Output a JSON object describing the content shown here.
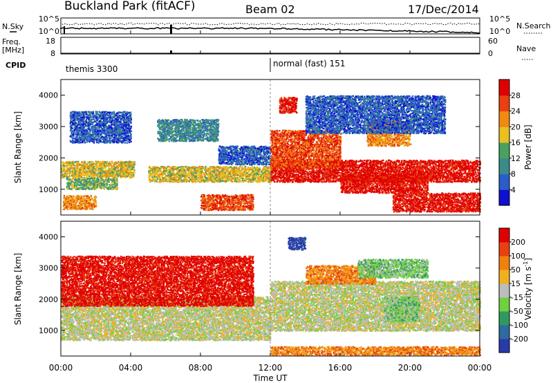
{
  "header": {
    "site": "Buckland Park (fitACF)",
    "beam": "Beam 02",
    "date": "17/Dec/2014"
  },
  "aux_panels": {
    "nsky_label": "N.Sky",
    "nsearch_label": "N.Search",
    "freq_label": "Freq.",
    "freq_unit": "[MHz]",
    "nave_label": "Nave",
    "cpid_label": "CPID",
    "noise_ticks_left": [
      "10^5",
      "10^0"
    ],
    "noise_ticks_right": [
      "10^5",
      "10^0"
    ],
    "freq_ticks": [
      "18",
      "8"
    ],
    "nave_ticks": [
      "60",
      "0"
    ],
    "cpid_segments": [
      {
        "text": "themis 3300",
        "start_h": 0
      },
      {
        "text": "normal (fast) 151",
        "start_h": 12
      }
    ]
  },
  "time_axis": {
    "label": "Time UT",
    "ticks": [
      "00:00",
      "04:00",
      "08:00",
      "12:00",
      "16:00",
      "20:00",
      "00:00"
    ]
  },
  "range_axis": {
    "label": "Slant Range [km]",
    "ticks": [
      1000,
      2000,
      3000,
      4000
    ]
  },
  "power_scale": {
    "label": "Power [dB]",
    "ticks": [
      "4",
      "8",
      "12",
      "16",
      "20",
      "24",
      "28"
    ],
    "colors": [
      "#1010d0",
      "#2a5dc8",
      "#3a8a8a",
      "#4aa060",
      "#e8c020",
      "#f08a10",
      "#e84010",
      "#e00000"
    ]
  },
  "velocity_scale": {
    "label": "Velocity [m s",
    "label_sup": "-1",
    "label_end": "]",
    "ticks": [
      "200",
      "100",
      "50",
      "15",
      "-15",
      "-50",
      "-100",
      "-200"
    ],
    "colors": [
      "#2a3aa8",
      "#2f6aa0",
      "#2f9a60",
      "#70d040",
      "#bdbdbd",
      "#f0b020",
      "#f08010",
      "#e84010",
      "#e00000"
    ]
  },
  "chart_data": {
    "type": "heatmap",
    "x_range_hours": [
      0,
      24
    ],
    "y_range_km": [
      180,
      4500
    ],
    "panels": [
      {
        "name": "Power",
        "blobs": [
          {
            "t0": 0,
            "t1": 4.2,
            "r": 1650,
            "dr": 260,
            "level": 4
          },
          {
            "t0": 0.3,
            "t1": 3.2,
            "r": 1200,
            "dr": 180,
            "level": 3
          },
          {
            "t0": 0.1,
            "t1": 2.0,
            "r": 600,
            "dr": 220,
            "level": 5
          },
          {
            "t0": 0.5,
            "t1": 4,
            "r": 3000,
            "dr": 500,
            "level": 1
          },
          {
            "t0": 5,
            "t1": 12,
            "r": 1500,
            "dr": 250,
            "level": 4
          },
          {
            "t0": 8,
            "t1": 11,
            "r": 600,
            "dr": 250,
            "level": 6
          },
          {
            "t0": 5.5,
            "t1": 9,
            "r": 2900,
            "dr": 350,
            "level": 2
          },
          {
            "t0": 9,
            "t1": 12,
            "r": 2100,
            "dr": 300,
            "level": 1
          },
          {
            "t0": 12,
            "t1": 24,
            "r": 1600,
            "dr": 350,
            "level": 7
          },
          {
            "t0": 12,
            "t1": 16,
            "r": 2300,
            "dr": 600,
            "level": 6
          },
          {
            "t0": 12.5,
            "t1": 13.5,
            "r": 3700,
            "dr": 250,
            "level": 7
          },
          {
            "t0": 16,
            "t1": 21,
            "r": 1200,
            "dr": 300,
            "level": 7
          },
          {
            "t0": 19,
            "t1": 24,
            "r": 600,
            "dr": 300,
            "level": 7
          },
          {
            "t0": 17.5,
            "t1": 20,
            "r": 2800,
            "dr": 400,
            "level": 5
          },
          {
            "t0": 14,
            "t1": 22,
            "r": 3400,
            "dr": 600,
            "level": 1
          }
        ]
      },
      {
        "name": "Velocity",
        "blobs": [
          {
            "t0": 0,
            "t1": 12,
            "r": 1400,
            "dr": 700,
            "level": 4
          },
          {
            "t0": 12,
            "t1": 24,
            "r": 1800,
            "dr": 800,
            "level": 4
          },
          {
            "t0": 13,
            "t1": 14,
            "r": 3800,
            "dr": 200,
            "level": 0
          },
          {
            "t0": 18.5,
            "t1": 20.5,
            "r": 1700,
            "dr": 400,
            "level": 3
          },
          {
            "t0": 14,
            "t1": 18,
            "r": 2800,
            "dr": 300,
            "level": 6
          },
          {
            "t0": 17,
            "t1": 21,
            "r": 3000,
            "dr": 300,
            "level": 3
          },
          {
            "t0": 12,
            "t1": 24,
            "r": 350,
            "dr": 150,
            "level": 6
          },
          {
            "t0": 0,
            "t1": 11,
            "r": 2600,
            "dr": 800,
            "level": 8
          }
        ]
      }
    ]
  }
}
